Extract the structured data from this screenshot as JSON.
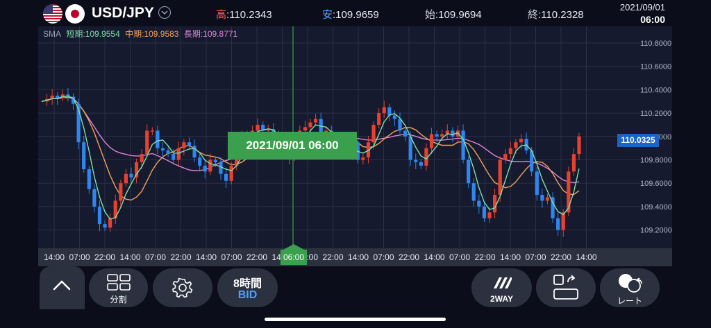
{
  "header": {
    "pair": "USD/JPY",
    "high_label": "高",
    "high_value": ":110.2343",
    "low_label": "安",
    "low_value": ":109.9659",
    "open_label": "始",
    "open_value": ":109.9694",
    "close_label": "終",
    "close_value": ":110.2328",
    "date": "2021/09/01",
    "time": "06:00"
  },
  "sma": {
    "label": "SMA",
    "short": "短期:109.9554",
    "mid": "中期:109.9583",
    "long": "長期:109.8771",
    "short_color": "#7fe0a8",
    "mid_color": "#f2a35a",
    "long_color": "#e083d6"
  },
  "crosshair": {
    "label": "2021/09/01 06:00",
    "time_label": "06:00"
  },
  "current_price": "110.0325",
  "price_axis": [
    "110.8000",
    "110.6000",
    "110.4000",
    "110.2000",
    "110.0000",
    "109.8000",
    "109.6000",
    "109.4000",
    "109.2000"
  ],
  "time_axis": [
    "14:00",
    "07:00",
    "22:00",
    "14:00",
    "07:00",
    "22:00",
    "14:00",
    "07:00",
    "22:00",
    "14:00",
    "07:00",
    "22:00",
    "14:00",
    "07:00",
    "22:00",
    "14:00",
    "07:00",
    "22:00",
    "14:00",
    "07:00",
    "22:00",
    "14:00"
  ],
  "toolbar": {
    "split_label": "分割",
    "timeframe_label": "8時間",
    "mode_label": "BID",
    "twoway_label": "2WAY",
    "rate_label": "レート"
  },
  "colors": {
    "up": "#e8412f",
    "down": "#2f86f0",
    "accent_green": "#3aa04e"
  }
}
